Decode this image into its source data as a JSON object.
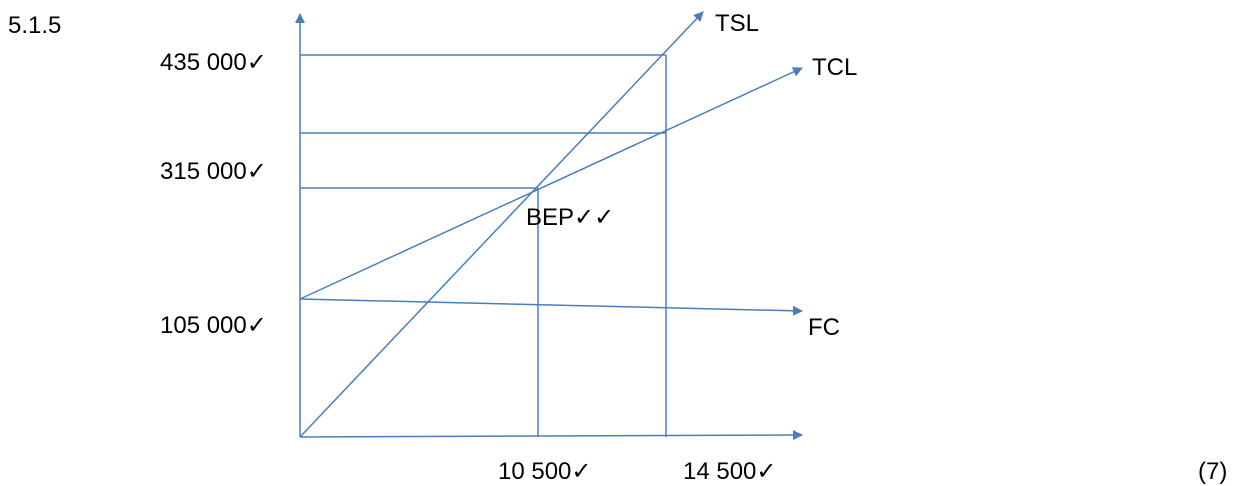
{
  "question_number": "5.1.5",
  "marks": "(7)",
  "line_color": "#4a7ebb",
  "y_axis": {
    "labels": [
      "435 000✓",
      "315 000✓",
      "105 000✓"
    ]
  },
  "x_axis": {
    "labels": [
      "10 500✓",
      "14 500✓"
    ]
  },
  "lines": {
    "total_sales": "TSL",
    "total_cost": "TCL",
    "fixed_cost": "FC"
  },
  "break_even_label": "BEP✓✓"
}
